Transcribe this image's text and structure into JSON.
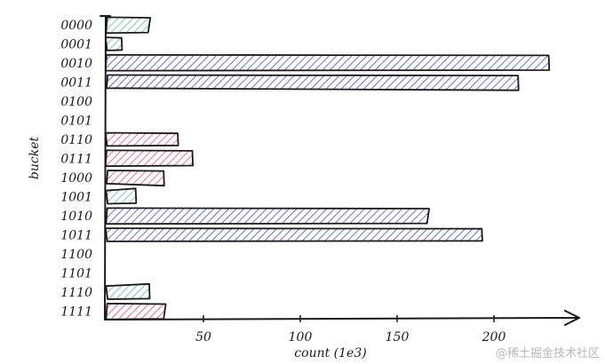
{
  "chart_data": {
    "type": "bar",
    "orientation": "horizontal",
    "categories": [
      "0000",
      "0001",
      "0010",
      "0011",
      "0100",
      "0101",
      "0110",
      "0111",
      "1000",
      "1001",
      "1010",
      "1011",
      "1100",
      "1101",
      "1110",
      "1111"
    ],
    "values": [
      22,
      8,
      228,
      213,
      0,
      0,
      37,
      44,
      30,
      15,
      166,
      194,
      0,
      0,
      22,
      30
    ],
    "bar_colors": [
      "#5fb89f",
      "#5fb89f",
      "#4550b0",
      "#4550b0",
      null,
      null,
      "#d9506b",
      "#d9506b",
      "#d9506b",
      "#5fb89f",
      "#4550b0",
      "#4550b0",
      null,
      null,
      "#5fb89f",
      "#d9506b"
    ],
    "xlabel": "count (1e3)",
    "ylabel": "bucket",
    "xticks": [
      50,
      100,
      150,
      200
    ],
    "xlim": [
      0,
      240
    ],
    "grid": false,
    "fill_style": "hatched"
  },
  "watermark": "@稀土掘金技术社区"
}
